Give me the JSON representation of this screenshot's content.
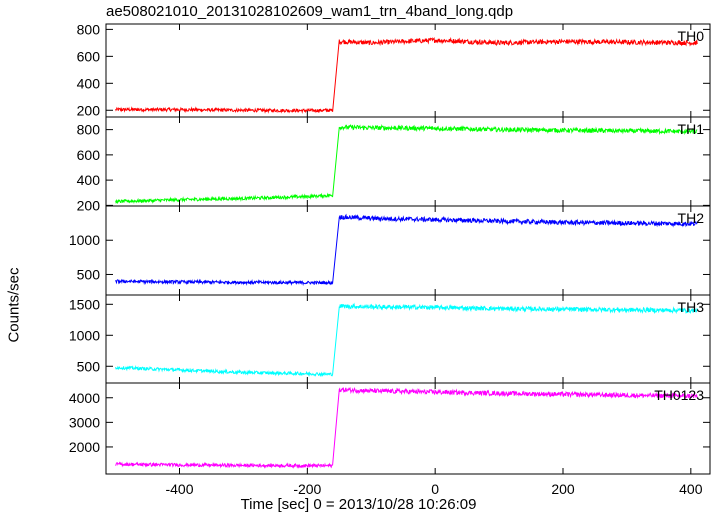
{
  "title": "ae508021010_20131028102609_wam1_trn_4band_long.qdp",
  "xlabel": "Time [sec] 0 = 2013/10/28 10:26:09",
  "ylabel": "Counts/sec",
  "chart_data": {
    "type": "line",
    "title": "ae508021010_20131028102609_wam1_trn_4band_long.qdp",
    "xlabel": "Time [sec] 0 = 2013/10/28 10:26:09",
    "ylabel": "Counts/sec",
    "xlim": [
      -515,
      430
    ],
    "x_ticks": [
      -400,
      -200,
      0,
      200,
      400
    ],
    "step_time": -152,
    "legend": "panel labels at top-right",
    "panels": [
      {
        "name": "TH0",
        "color": "#ff0000",
        "ylim": [
          150,
          840
        ],
        "y_ticks": [
          200,
          400,
          600,
          800
        ],
        "series": [
          {
            "x": [
              -500,
              -400,
              -300,
              -200,
              -160
            ],
            "y": [
              205,
              205,
              200,
              198,
              200
            ]
          },
          {
            "x": [
              -150,
              -100,
              0,
              100,
              200,
              300,
              410
            ],
            "y": [
              710,
              700,
              720,
              700,
              710,
              705,
              700
            ]
          }
        ]
      },
      {
        "name": "TH1",
        "color": "#00ff00",
        "ylim": [
          195,
          900
        ],
        "y_ticks": [
          200,
          400,
          600,
          800
        ],
        "series": [
          {
            "x": [
              -500,
              -400,
              -300,
              -200,
              -160
            ],
            "y": [
              230,
              245,
              255,
              270,
              280
            ]
          },
          {
            "x": [
              -150,
              -100,
              0,
              100,
              200,
              300,
              410
            ],
            "y": [
              820,
              815,
              810,
              800,
              795,
              790,
              785
            ]
          }
        ]
      },
      {
        "name": "TH2",
        "color": "#0000ff",
        "ylim": [
          200,
          1500
        ],
        "y_ticks": [
          500,
          1000
        ],
        "series": [
          {
            "x": [
              -500,
              -400,
              -300,
              -200,
              -160
            ],
            "y": [
              400,
              390,
              385,
              380,
              380
            ]
          },
          {
            "x": [
              -150,
              -100,
              0,
              100,
              200,
              300,
              410
            ],
            "y": [
              1340,
              1320,
              1300,
              1280,
              1260,
              1250,
              1240
            ]
          }
        ]
      },
      {
        "name": "TH3",
        "color": "#00ffff",
        "ylim": [
          230,
          1650
        ],
        "y_ticks": [
          500,
          1000,
          1500
        ],
        "series": [
          {
            "x": [
              -500,
              -400,
              -300,
              -200,
              -160
            ],
            "y": [
              480,
              440,
              400,
              380,
              370
            ]
          },
          {
            "x": [
              -150,
              -100,
              0,
              100,
              200,
              300,
              410
            ],
            "y": [
              1470,
              1460,
              1450,
              1430,
              1420,
              1410,
              1400
            ]
          }
        ]
      },
      {
        "name": "TH0123",
        "color": "#ff00ff",
        "ylim": [
          900,
          4600
        ],
        "y_ticks": [
          2000,
          3000,
          4000
        ],
        "series": [
          {
            "x": [
              -500,
              -400,
              -300,
              -200,
              -160
            ],
            "y": [
              1300,
              1270,
              1250,
              1240,
              1240
            ]
          },
          {
            "x": [
              -150,
              -100,
              0,
              100,
              200,
              300,
              410
            ],
            "y": [
              4330,
              4280,
              4230,
              4180,
              4140,
              4100,
              4070
            ]
          }
        ]
      }
    ]
  }
}
